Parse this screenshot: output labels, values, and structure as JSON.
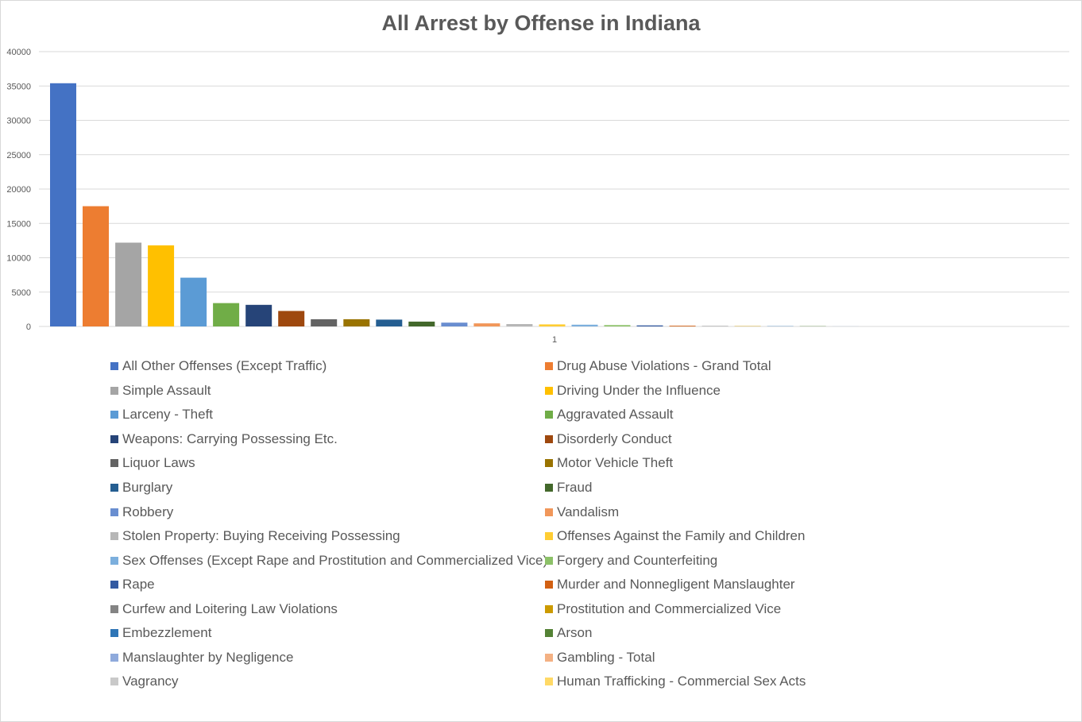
{
  "chart_data": {
    "type": "bar",
    "title": "All Arrest by Offense in Indiana",
    "categories": [
      "1"
    ],
    "ylim": [
      0,
      40000
    ],
    "yticks": [
      0,
      5000,
      10000,
      15000,
      20000,
      25000,
      30000,
      35000,
      40000
    ],
    "grid": true,
    "legend_position": "bottom",
    "series": [
      {
        "name": "All Other Offenses (Except Traffic)",
        "color": "#4472C4",
        "values": [
          35400
        ]
      },
      {
        "name": "Drug Abuse Violations - Grand Total",
        "color": "#ED7D31",
        "values": [
          17500
        ]
      },
      {
        "name": "Simple Assault",
        "color": "#A5A5A5",
        "values": [
          12200
        ]
      },
      {
        "name": "Driving Under the Influence",
        "color": "#FFC000",
        "values": [
          11800
        ]
      },
      {
        "name": "Larceny - Theft",
        "color": "#5B9BD5",
        "values": [
          7100
        ]
      },
      {
        "name": "Aggravated Assault",
        "color": "#70AD47",
        "values": [
          3400
        ]
      },
      {
        "name": "Weapons: Carrying Possessing Etc.",
        "color": "#264478",
        "values": [
          3150
        ]
      },
      {
        "name": "Disorderly Conduct",
        "color": "#9E480E",
        "values": [
          2250
        ]
      },
      {
        "name": "Liquor Laws",
        "color": "#636363",
        "values": [
          1050
        ]
      },
      {
        "name": "Motor Vehicle Theft",
        "color": "#997300",
        "values": [
          1050
        ]
      },
      {
        "name": "Burglary",
        "color": "#255E91",
        "values": [
          1000
        ]
      },
      {
        "name": "Fraud",
        "color": "#43682B",
        "values": [
          700
        ]
      },
      {
        "name": "Robbery",
        "color": "#698ED0",
        "values": [
          550
        ]
      },
      {
        "name": "Vandalism",
        "color": "#F1975A",
        "values": [
          450
        ]
      },
      {
        "name": "Stolen Property: Buying Receiving Possessing",
        "color": "#B7B7B7",
        "values": [
          350
        ]
      },
      {
        "name": "Offenses Against the Family and Children",
        "color": "#FFCD33",
        "values": [
          300
        ]
      },
      {
        "name": "Sex Offenses (Except Rape and Prostitution and Commercialized Vice)",
        "color": "#7CAFDD",
        "values": [
          250
        ]
      },
      {
        "name": "Forgery and Counterfeiting",
        "color": "#8CC168",
        "values": [
          200
        ]
      },
      {
        "name": "Rape",
        "color": "#335AA1",
        "values": [
          150
        ]
      },
      {
        "name": "Murder and Nonnegligent Manslaughter",
        "color": "#D26012",
        "values": [
          100
        ]
      },
      {
        "name": "Curfew and Loitering Law Violations",
        "color": "#848484",
        "values": [
          60
        ]
      },
      {
        "name": "Prostitution and Commercialized Vice",
        "color": "#CC9A00",
        "values": [
          50
        ]
      },
      {
        "name": "Embezzlement",
        "color": "#2E75B6",
        "values": [
          40
        ]
      },
      {
        "name": "Arson",
        "color": "#548235",
        "values": [
          30
        ]
      },
      {
        "name": "Manslaughter by Negligence",
        "color": "#8FAADC",
        "values": [
          10
        ]
      },
      {
        "name": "Gambling - Total",
        "color": "#F4B183",
        "values": [
          5
        ]
      },
      {
        "name": "Vagrancy",
        "color": "#C9C9C9",
        "values": [
          5
        ]
      },
      {
        "name": "Human Trafficking - Commercial Sex Acts",
        "color": "#FFD966",
        "values": [
          5
        ]
      }
    ]
  },
  "colors": {
    "gridline": "#d9d9d9",
    "axis_text": "#595959",
    "frame": "#d9d9d9"
  }
}
